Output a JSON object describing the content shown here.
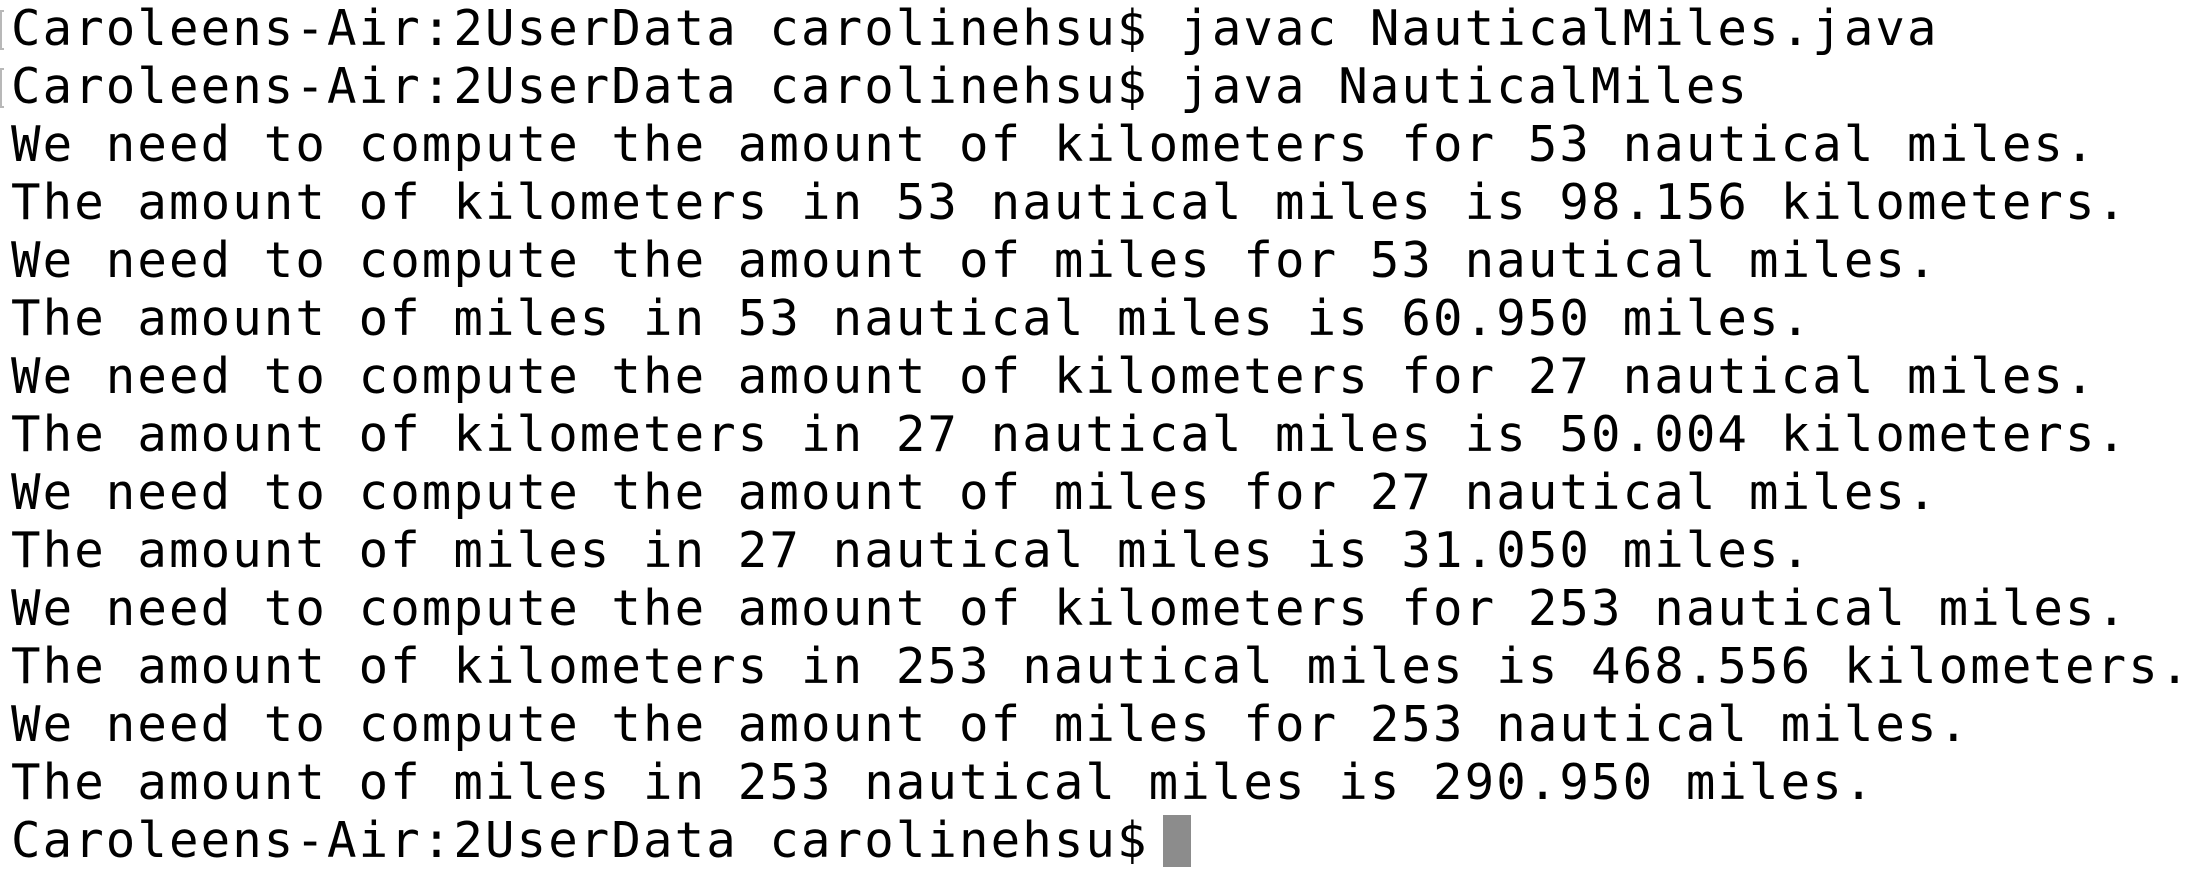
{
  "terminal": {
    "lines": [
      "Caroleens-Air:2UserData carolinehsu$ javac NauticalMiles.java",
      "Caroleens-Air:2UserData carolinehsu$ java NauticalMiles",
      "We need to compute the amount of kilometers for 53 nautical miles.",
      "The amount of kilometers in 53 nautical miles is 98.156 kilometers.",
      "We need to compute the amount of miles for 53 nautical miles.",
      "The amount of miles in 53 nautical miles is 60.950 miles.",
      "We need to compute the amount of kilometers for 27 nautical miles.",
      "The amount of kilometers in 27 nautical miles is 50.004 kilometers.",
      "We need to compute the amount of miles for 27 nautical miles.",
      "The amount of miles in 27 nautical miles is 31.050 miles.",
      "We need to compute the amount of kilometers for 253 nautical miles.",
      "The amount of kilometers in 253 nautical miles is 468.556 kilometers.",
      "We need to compute the amount of miles for 253 nautical miles.",
      "The amount of miles in 253 nautical miles is 290.950 miles."
    ],
    "prompt": "Caroleens-Air:2UserData carolinehsu$"
  }
}
